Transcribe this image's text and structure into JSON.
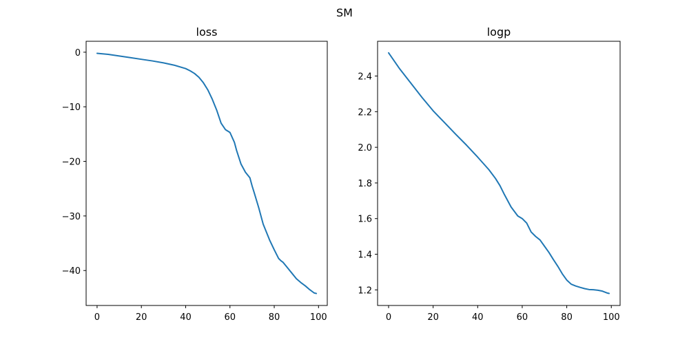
{
  "suptitle": "SM",
  "chart_data": [
    {
      "type": "line",
      "title": "loss",
      "xlabel": "",
      "ylabel": "",
      "xlim": [
        -4.95,
        103.95
      ],
      "ylim": [
        -46.4,
        2.0
      ],
      "xticks": [
        0,
        20,
        40,
        60,
        80,
        100
      ],
      "yticks": [
        0,
        -10,
        -20,
        -30,
        -40
      ],
      "grid": false,
      "series": [
        {
          "color": "#1f77b4",
          "x": [
            0,
            5,
            10,
            15,
            20,
            25,
            30,
            35,
            40,
            42,
            44,
            46,
            48,
            50,
            52,
            54,
            56,
            58,
            60,
            62,
            63,
            65,
            67,
            69,
            70,
            71,
            73,
            75,
            77,
            78,
            80,
            82,
            83,
            84,
            86,
            88,
            90,
            92,
            94,
            96,
            98,
            99
          ],
          "y": [
            -0.2,
            -0.4,
            -0.7,
            -1.0,
            -1.3,
            -1.6,
            -1.95,
            -2.4,
            -3.0,
            -3.4,
            -3.9,
            -4.6,
            -5.6,
            -6.9,
            -8.6,
            -10.6,
            -13.0,
            -14.2,
            -14.7,
            -16.5,
            -18.0,
            -20.5,
            -22.0,
            -23.0,
            -24.5,
            -25.8,
            -28.5,
            -31.5,
            -33.5,
            -34.5,
            -36.2,
            -37.8,
            -38.2,
            -38.5,
            -39.5,
            -40.5,
            -41.5,
            -42.2,
            -42.8,
            -43.5,
            -44.1,
            -44.2
          ]
        }
      ]
    },
    {
      "type": "line",
      "title": "logp",
      "xlabel": "",
      "ylabel": "",
      "xlim": [
        -4.95,
        103.95
      ],
      "ylim": [
        1.1125,
        2.595
      ],
      "xticks": [
        0,
        20,
        40,
        60,
        80,
        100
      ],
      "yticks": [
        1.2,
        1.4,
        1.6,
        1.8,
        2.0,
        2.2,
        2.4
      ],
      "grid": false,
      "series": [
        {
          "color": "#1f77b4",
          "x": [
            0,
            5,
            10,
            15,
            20,
            25,
            30,
            35,
            40,
            45,
            48,
            50,
            52,
            55,
            58,
            60,
            62,
            64,
            66,
            68,
            70,
            72,
            74,
            76,
            78,
            80,
            82,
            84,
            86,
            88,
            90,
            92,
            94,
            96,
            98,
            99
          ],
          "y": [
            2.53,
            2.44,
            2.36,
            2.28,
            2.205,
            2.14,
            2.075,
            2.012,
            1.945,
            1.875,
            1.825,
            1.785,
            1.735,
            1.665,
            1.615,
            1.6,
            1.575,
            1.525,
            1.5,
            1.48,
            1.445,
            1.41,
            1.37,
            1.332,
            1.29,
            1.255,
            1.232,
            1.222,
            1.214,
            1.207,
            1.202,
            1.201,
            1.198,
            1.193,
            1.183,
            1.18
          ]
        }
      ]
    }
  ]
}
